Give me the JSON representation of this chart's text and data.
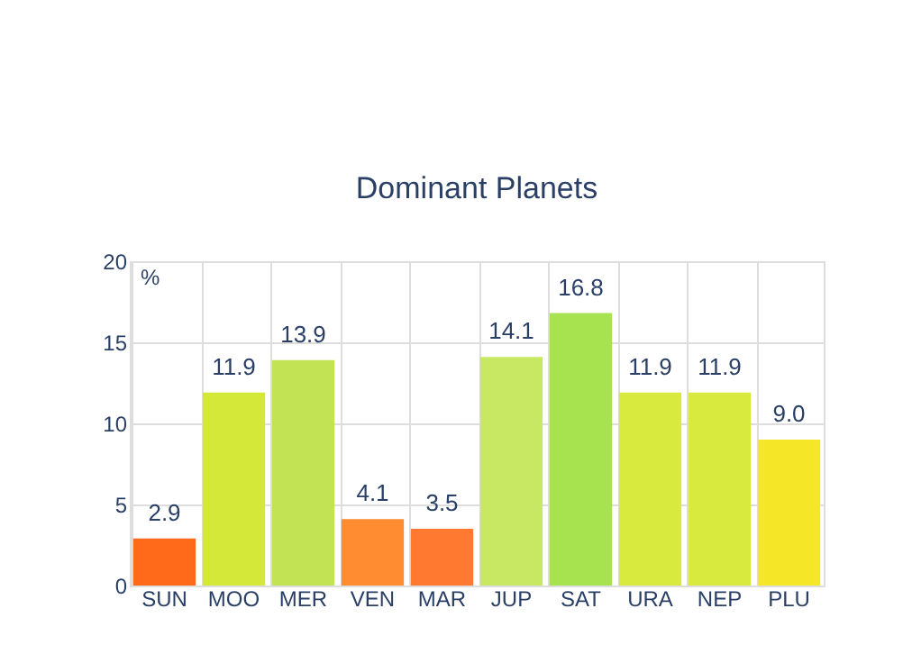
{
  "chart_data": {
    "type": "bar",
    "title": "Dominant Planets",
    "ylabel": "%",
    "categories": [
      "SUN",
      "MOO",
      "MER",
      "VEN",
      "MAR",
      "JUP",
      "SAT",
      "URA",
      "NEP",
      "PLU"
    ],
    "values": [
      2.9,
      11.9,
      13.9,
      4.1,
      3.5,
      14.1,
      16.8,
      11.9,
      11.9,
      9.0
    ],
    "colors": [
      "#ff6a1a",
      "#d4e83a",
      "#c2e354",
      "#ff8c30",
      "#ff7a30",
      "#c8e864",
      "#a6e34e",
      "#d8ea3e",
      "#d8ea3e",
      "#f6e628"
    ],
    "value_labels": [
      "2.9",
      "11.9",
      "13.9",
      "4.1",
      "3.5",
      "14.1",
      "16.8",
      "11.9",
      "11.9",
      "9.0"
    ],
    "ylim": [
      0,
      20
    ],
    "yticks": [
      0,
      5,
      10,
      15,
      20
    ],
    "grid": true
  }
}
